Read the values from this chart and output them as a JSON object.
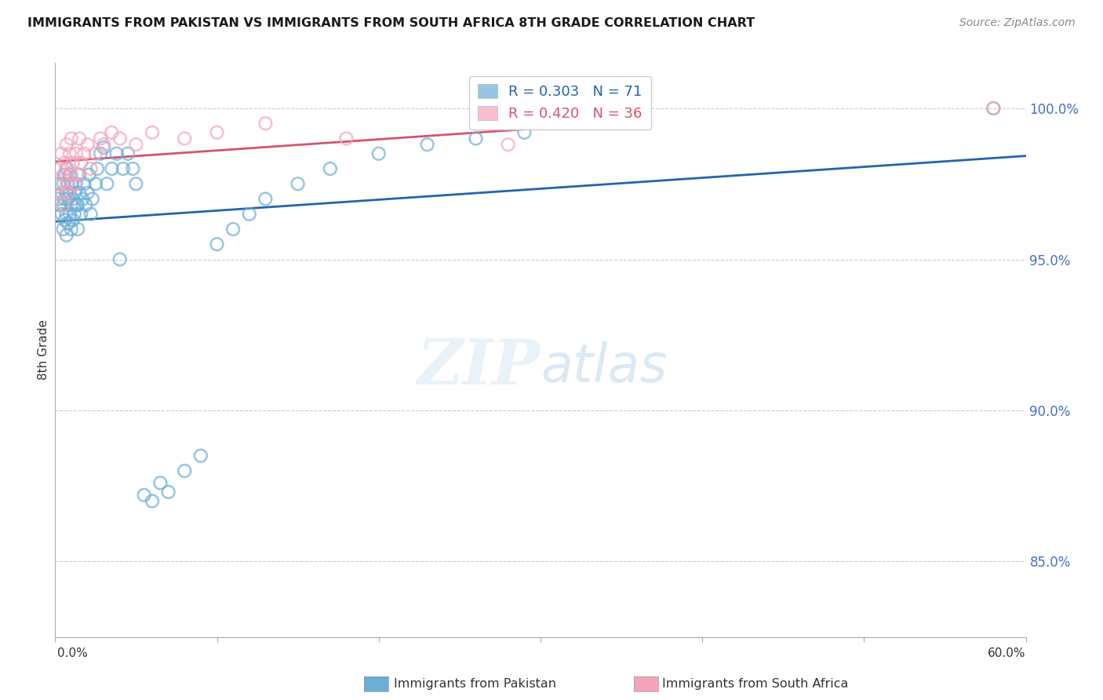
{
  "title": "IMMIGRANTS FROM PAKISTAN VS IMMIGRANTS FROM SOUTH AFRICA 8TH GRADE CORRELATION CHART",
  "source": "Source: ZipAtlas.com",
  "ylabel": "8th Grade",
  "ytick_labels": [
    "100.0%",
    "95.0%",
    "90.0%",
    "85.0%"
  ],
  "ytick_values": [
    1.0,
    0.95,
    0.9,
    0.85
  ],
  "xlim": [
    0.0,
    0.6
  ],
  "ylim": [
    0.825,
    1.015
  ],
  "legend_pakistan": "Immigrants from Pakistan",
  "legend_south_africa": "Immigrants from South Africa",
  "R_pakistan": 0.303,
  "N_pakistan": 71,
  "R_south_africa": 0.42,
  "N_south_africa": 36,
  "color_pakistan": "#6baed6",
  "color_south_africa": "#f4a3bb",
  "line_color_pakistan": "#2166ac",
  "line_color_south_africa": "#d6546e",
  "watermark_zip": "ZIP",
  "watermark_atlas": "atlas",
  "background_color": "#ffffff",
  "grid_color": "#cccccc",
  "pakistan_x": [
    0.002,
    0.003,
    0.003,
    0.004,
    0.004,
    0.005,
    0.005,
    0.005,
    0.006,
    0.006,
    0.006,
    0.007,
    0.007,
    0.007,
    0.007,
    0.008,
    0.008,
    0.008,
    0.009,
    0.009,
    0.009,
    0.01,
    0.01,
    0.01,
    0.011,
    0.011,
    0.012,
    0.012,
    0.013,
    0.013,
    0.014,
    0.014,
    0.015,
    0.015,
    0.016,
    0.017,
    0.018,
    0.019,
    0.02,
    0.021,
    0.022,
    0.023,
    0.025,
    0.026,
    0.028,
    0.03,
    0.032,
    0.035,
    0.038,
    0.04,
    0.042,
    0.045,
    0.048,
    0.05,
    0.055,
    0.06,
    0.065,
    0.07,
    0.08,
    0.09,
    0.1,
    0.11,
    0.12,
    0.13,
    0.15,
    0.17,
    0.2,
    0.23,
    0.26,
    0.29,
    0.58
  ],
  "pakistan_y": [
    0.97,
    0.968,
    0.975,
    0.972,
    0.965,
    0.96,
    0.968,
    0.975,
    0.963,
    0.97,
    0.978,
    0.965,
    0.972,
    0.958,
    0.98,
    0.962,
    0.97,
    0.975,
    0.965,
    0.972,
    0.978,
    0.96,
    0.968,
    0.975,
    0.963,
    0.97,
    0.965,
    0.972,
    0.968,
    0.975,
    0.96,
    0.968,
    0.972,
    0.978,
    0.965,
    0.97,
    0.975,
    0.968,
    0.972,
    0.978,
    0.965,
    0.97,
    0.975,
    0.98,
    0.985,
    0.987,
    0.975,
    0.98,
    0.985,
    0.95,
    0.98,
    0.985,
    0.98,
    0.975,
    0.872,
    0.87,
    0.876,
    0.873,
    0.88,
    0.885,
    0.955,
    0.96,
    0.965,
    0.97,
    0.975,
    0.98,
    0.985,
    0.988,
    0.99,
    0.992,
    1.0
  ],
  "south_africa_x": [
    0.002,
    0.003,
    0.004,
    0.004,
    0.005,
    0.005,
    0.006,
    0.007,
    0.007,
    0.008,
    0.008,
    0.009,
    0.01,
    0.01,
    0.011,
    0.012,
    0.013,
    0.014,
    0.015,
    0.016,
    0.018,
    0.02,
    0.022,
    0.025,
    0.028,
    0.03,
    0.035,
    0.04,
    0.05,
    0.06,
    0.08,
    0.1,
    0.13,
    0.18,
    0.28,
    0.58
  ],
  "south_africa_y": [
    0.975,
    0.98,
    0.972,
    0.985,
    0.968,
    0.978,
    0.982,
    0.975,
    0.988,
    0.972,
    0.98,
    0.985,
    0.978,
    0.99,
    0.982,
    0.975,
    0.985,
    0.978,
    0.99,
    0.982,
    0.985,
    0.988,
    0.98,
    0.985,
    0.99,
    0.988,
    0.992,
    0.99,
    0.988,
    0.992,
    0.99,
    0.992,
    0.995,
    0.99,
    0.988,
    1.0
  ]
}
